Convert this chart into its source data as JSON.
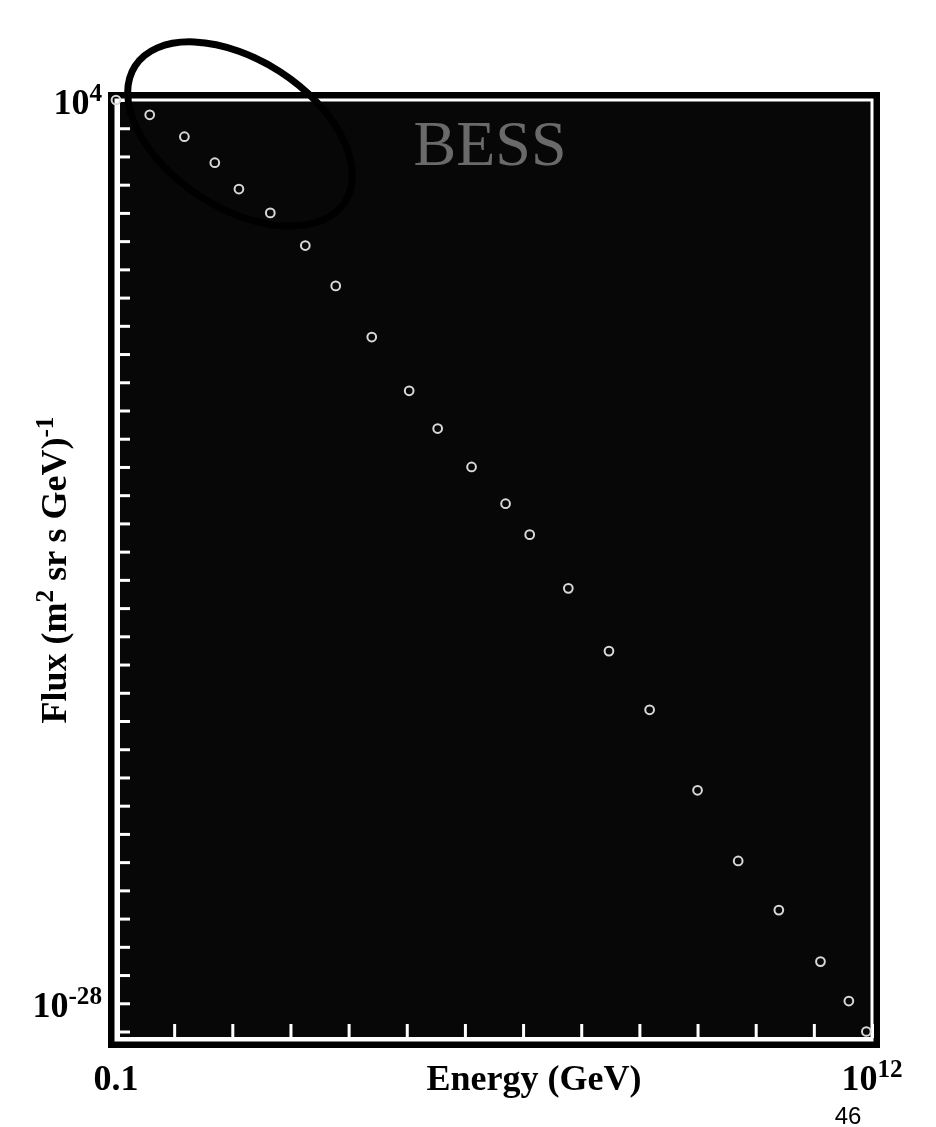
{
  "chart_data": {
    "type": "scatter",
    "xlabel": "Energy (GeV)",
    "ylabel": "Flux (m$^{2}$ sr s GeV)$^{-1}$",
    "log": "xy",
    "marker": "circle",
    "grid": false,
    "xlim": [
      0.1,
      1000000000000.0
    ],
    "ylim": [
      5e-30,
      10000.0
    ],
    "xticks": [
      {
        "value": 0.1,
        "label": "0.1"
      },
      {
        "value": 1,
        "label": null
      },
      {
        "value": 10,
        "label": null
      },
      {
        "value": 100,
        "label": null
      },
      {
        "value": 1000.0,
        "label": null
      },
      {
        "value": 10000.0,
        "label": null
      },
      {
        "value": 100000.0,
        "label": null
      },
      {
        "value": 1000000.0,
        "label": null
      },
      {
        "value": 10000000.0,
        "label": null
      },
      {
        "value": 100000000.0,
        "label": null
      },
      {
        "value": 1000000000.0,
        "label": null
      },
      {
        "value": 10000000000.0,
        "label": null
      },
      {
        "value": 100000000000.0,
        "label": null
      },
      {
        "value": 1000000000000.0,
        "label": "10$^{12}$"
      }
    ],
    "yticks": [
      {
        "value": 10000.0,
        "label": "10$^{4}$"
      },
      {
        "value": 1000.0,
        "label": null
      },
      {
        "value": 100.0,
        "label": null
      },
      {
        "value": 10,
        "label": null
      },
      {
        "value": 1,
        "label": null
      },
      {
        "value": 0.1,
        "label": null
      },
      {
        "value": 0.01,
        "label": null
      },
      {
        "value": 0.001,
        "label": null
      },
      {
        "value": 0.0001,
        "label": null
      },
      {
        "value": 1e-05,
        "label": null
      },
      {
        "value": 1e-06,
        "label": null
      },
      {
        "value": 1e-07,
        "label": null
      },
      {
        "value": 1e-08,
        "label": null
      },
      {
        "value": 1e-09,
        "label": null
      },
      {
        "value": 1e-10,
        "label": null
      },
      {
        "value": 1e-11,
        "label": null
      },
      {
        "value": 1e-12,
        "label": null
      },
      {
        "value": 1e-13,
        "label": null
      },
      {
        "value": 1e-14,
        "label": null
      },
      {
        "value": 1e-15,
        "label": null
      },
      {
        "value": 1e-16,
        "label": null
      },
      {
        "value": 1e-17,
        "label": null
      },
      {
        "value": 1e-18,
        "label": null
      },
      {
        "value": 1e-19,
        "label": null
      },
      {
        "value": 1e-20,
        "label": null
      },
      {
        "value": 1e-21,
        "label": null
      },
      {
        "value": 1e-22,
        "label": null
      },
      {
        "value": 1e-23,
        "label": null
      },
      {
        "value": 1e-24,
        "label": null
      },
      {
        "value": 1e-25,
        "label": null
      },
      {
        "value": 1e-26,
        "label": null
      },
      {
        "value": 1e-27,
        "label": null
      },
      {
        "value": 1e-28,
        "label": "10$^{-28}$"
      },
      {
        "value": 1e-29,
        "label": null
      }
    ],
    "series": [
      {
        "color": "#d8d8d8",
        "x": [
          0.1,
          0.38,
          1.5,
          5,
          13,
          45,
          180,
          600,
          2500,
          11000.0,
          34000.0,
          130000.0,
          500000.0,
          1300000.0,
          6000000.0,
          30000000.0,
          150000000.0,
          1000000000.0,
          5000000000.0,
          25000000000.0,
          130000000000.0,
          400000000000.0,
          800000000000.0
        ],
        "values": [
          10000.0,
          3000.0,
          500,
          60,
          7,
          1,
          0.07,
          0.0026,
          4e-05,
          5e-07,
          2.3e-08,
          1e-09,
          5e-11,
          4e-12,
          5e-14,
          3e-16,
          2.5e-18,
          3.5e-21,
          1.1e-23,
          2e-25,
          3e-27,
          1.2e-28,
          1e-29
        ]
      }
    ],
    "annotations": [
      "BESS",
      "46"
    ]
  }
}
